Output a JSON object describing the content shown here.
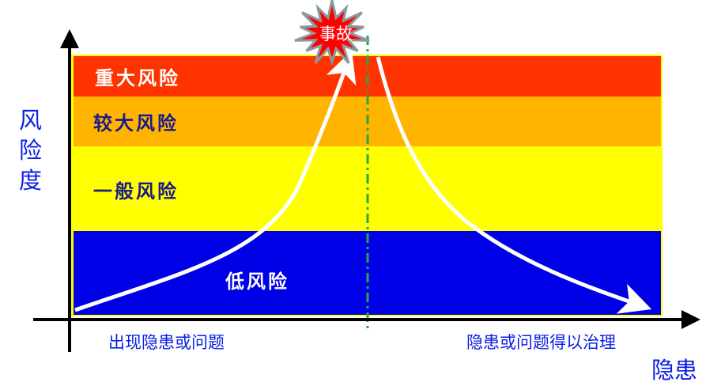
{
  "y_axis_label": [
    "风",
    "险",
    "度"
  ],
  "x_axis_label": "隐患",
  "bands": [
    {
      "label": "重大风险",
      "color": "#ff3300",
      "text_color": "#ffffff"
    },
    {
      "label": "较大风险",
      "color": "#ffb400",
      "text_color": "#1a1a8c"
    },
    {
      "label": "一般风险",
      "color": "#ffff00",
      "text_color": "#1a1a8c"
    },
    {
      "label": "低风险",
      "color": "#0000e6",
      "text_color": "#ffffff"
    }
  ],
  "accident": {
    "label": "事故",
    "color": "#ff0000"
  },
  "left_caption": "出现隐患或问题",
  "right_caption": "隐患或问题得以治理",
  "divider_color": "#22aa44"
}
